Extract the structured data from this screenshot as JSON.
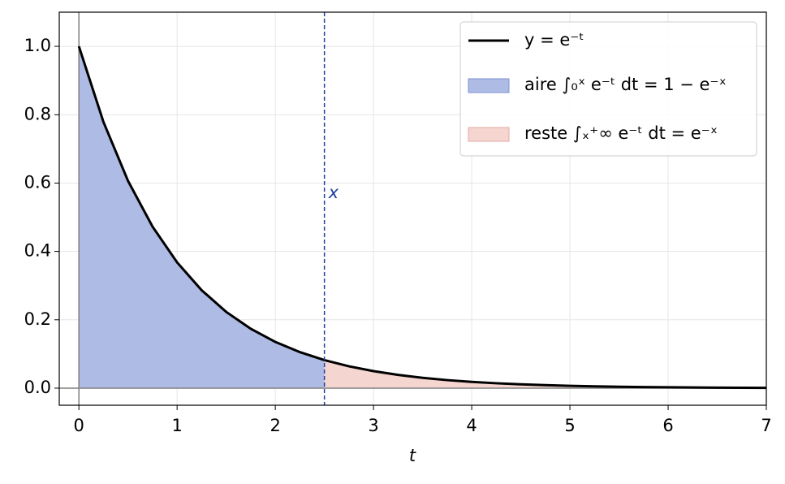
{
  "chart_data": {
    "type": "line",
    "xlabel": "t",
    "x": [
      0,
      0.25,
      0.5,
      0.75,
      1,
      1.25,
      1.5,
      1.75,
      2,
      2.25,
      2.5,
      2.75,
      3,
      3.25,
      3.5,
      3.75,
      4,
      4.25,
      4.5,
      4.75,
      5,
      5.25,
      5.5,
      5.75,
      6,
      6.25,
      6.5,
      6.75,
      7
    ],
    "series": [
      {
        "name": "y = e⁻ᵗ",
        "color": "#000000",
        "values": [
          1,
          0.7788,
          0.6065,
          0.4724,
          0.3679,
          0.2865,
          0.2231,
          0.1738,
          0.1353,
          0.1054,
          0.0821,
          0.0639,
          0.0498,
          0.0388,
          0.0302,
          0.0235,
          0.0183,
          0.0143,
          0.0111,
          0.0087,
          0.0067,
          0.0052,
          0.0041,
          0.0032,
          0.0025,
          0.0019,
          0.0015,
          0.0012,
          0.0009
        ]
      }
    ],
    "fill_between": [
      {
        "name": "aire ∫₀ˣ e⁻ᵗ dt = 1 − e⁻ˣ",
        "color": "#aebbe4",
        "edge": "#7f93d3",
        "x_range": [
          0,
          2.5
        ]
      },
      {
        "name": "reste ∫ₓ⁺∞ e⁻ᵗ dt = e⁻ˣ",
        "color": "#f4d5d0",
        "edge": "#e4aaa3",
        "x_range": [
          2.5,
          7
        ]
      }
    ],
    "vline": {
      "x": 2.5,
      "label": "x",
      "color": "#1f3f9f"
    },
    "xlim": [
      -0.2,
      7
    ],
    "ylim": [
      -0.05,
      1.1
    ],
    "xticks": [
      0,
      1,
      2,
      3,
      4,
      5,
      6,
      7
    ],
    "yticks": [
      {
        "value": 0,
        "label": "0.0"
      },
      {
        "value": 0.2,
        "label": "0.2"
      },
      {
        "value": 0.4,
        "label": "0.4"
      },
      {
        "value": 0.6,
        "label": "0.6"
      },
      {
        "value": 0.8,
        "label": "0.8"
      },
      {
        "value": 1,
        "label": "1.0"
      }
    ],
    "grid": true,
    "legend": "upper right"
  }
}
